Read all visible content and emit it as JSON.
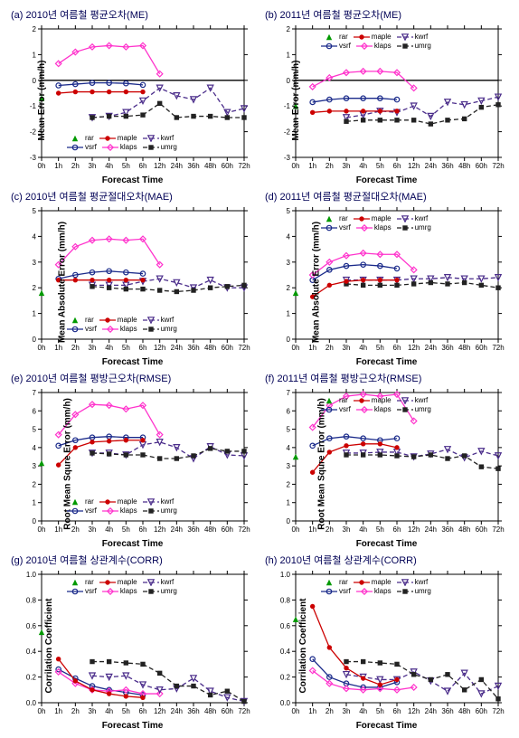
{
  "x_categories": [
    "0h",
    "1h",
    "2h",
    "3h",
    "4h",
    "5h",
    "6h",
    "12h",
    "24h",
    "36h",
    "48h",
    "60h",
    "72h"
  ],
  "xlabel": "Forecast Time",
  "series_meta": {
    "rar": {
      "label": "rar",
      "color": "#009900",
      "marker": "triangle",
      "line": "none"
    },
    "maple": {
      "label": "maple",
      "color": "#cc0000",
      "marker": "circle-fill",
      "line": "solid"
    },
    "kwrf": {
      "label": "kwrf",
      "color": "#4a2c8a",
      "marker": "tri-open",
      "line": "dash"
    },
    "vsrf": {
      "label": "vsrf",
      "color": "#1a2a8a",
      "marker": "circle-open",
      "line": "solid"
    },
    "klaps": {
      "label": "klaps",
      "color": "#ff33cc",
      "marker": "diamond-open",
      "line": "solid"
    },
    "umrg": {
      "label": "umrg",
      "color": "#222222",
      "marker": "square-fill",
      "line": "dash"
    }
  },
  "label_fontsize": 10,
  "tick_fontsize": 8,
  "title_fontsize": 11,
  "title_color": "#000055",
  "background_color": "#ffffff",
  "grid_color": "#000000",
  "panels": [
    {
      "id": "a",
      "title": "(a) 2010년  여름철 평균오차(ME)",
      "ylabel": "Mean Error (mm/h)",
      "ylim": [
        -3,
        2
      ],
      "ytick_step": 1,
      "zero_line": true,
      "legend_pos": "bottom-inside",
      "data": {
        "rar": [
          -0.7,
          null,
          null,
          null,
          null,
          null,
          null,
          null,
          null,
          null,
          null,
          null,
          null
        ],
        "maple": [
          null,
          -0.5,
          -0.45,
          -0.45,
          -0.45,
          -0.45,
          -0.45,
          null,
          null,
          null,
          null,
          null,
          null
        ],
        "vsrf": [
          null,
          -0.2,
          -0.15,
          -0.1,
          -0.1,
          -0.12,
          -0.18,
          null,
          null,
          null,
          null,
          null,
          null
        ],
        "klaps": [
          null,
          0.65,
          1.1,
          1.3,
          1.35,
          1.3,
          1.35,
          0.25,
          null,
          null,
          null,
          null,
          null
        ],
        "kwrf": [
          null,
          null,
          null,
          -1.45,
          -1.4,
          -1.25,
          -0.8,
          -0.3,
          -0.6,
          -0.75,
          -0.3,
          -1.25,
          -1.1
        ],
        "umrg": [
          null,
          null,
          null,
          -1.45,
          -1.4,
          -1.4,
          -1.35,
          -0.9,
          -1.45,
          -1.4,
          -1.4,
          -1.45,
          -1.45
        ]
      }
    },
    {
      "id": "b",
      "title": "(b) 2011년  여름철 평균오차(ME)",
      "ylabel": "Mean Error (mm/h)",
      "ylim": [
        -3,
        2
      ],
      "ytick_step": 1,
      "zero_line": true,
      "legend_pos": "top-inside",
      "data": {
        "rar": [
          -1.0,
          null,
          null,
          null,
          null,
          null,
          null,
          null,
          null,
          null,
          null,
          null,
          null
        ],
        "maple": [
          null,
          -1.25,
          -1.2,
          -1.2,
          -1.2,
          -1.2,
          -1.2,
          null,
          null,
          null,
          null,
          null,
          null
        ],
        "vsrf": [
          null,
          -0.85,
          -0.75,
          -0.7,
          -0.7,
          -0.7,
          -0.75,
          null,
          null,
          null,
          null,
          null,
          null
        ],
        "klaps": [
          null,
          -0.25,
          0.1,
          0.3,
          0.35,
          0.35,
          0.3,
          -0.3,
          null,
          null,
          null,
          null,
          null
        ],
        "kwrf": [
          null,
          null,
          null,
          -1.45,
          -1.35,
          -1.2,
          -1.25,
          -1.0,
          -1.4,
          -0.85,
          -0.95,
          -0.8,
          -0.65
        ],
        "umrg": [
          null,
          null,
          null,
          -1.6,
          -1.55,
          -1.55,
          -1.55,
          -1.55,
          -1.7,
          -1.55,
          -1.5,
          -1.05,
          -0.95
        ]
      }
    },
    {
      "id": "c",
      "title": "(c) 2010년  여름철  평균절대오차(MAE)",
      "ylabel": "Mean Absolute Error (mm/h)",
      "ylim": [
        0,
        5
      ],
      "ytick_step": 1,
      "legend_pos": "bottom-inside",
      "data": {
        "rar": [
          1.8,
          null,
          null,
          null,
          null,
          null,
          null,
          null,
          null,
          null,
          null,
          null,
          null
        ],
        "maple": [
          null,
          2.3,
          2.3,
          2.3,
          2.3,
          2.3,
          2.3,
          null,
          null,
          null,
          null,
          null,
          null
        ],
        "vsrf": [
          null,
          2.35,
          2.5,
          2.6,
          2.65,
          2.6,
          2.55,
          null,
          null,
          null,
          null,
          null,
          null
        ],
        "klaps": [
          null,
          2.9,
          3.6,
          3.85,
          3.9,
          3.85,
          3.9,
          2.9,
          null,
          null,
          null,
          null,
          null
        ],
        "kwrf": [
          null,
          null,
          null,
          2.1,
          2.1,
          2.1,
          2.25,
          2.35,
          2.2,
          2.0,
          2.3,
          2.0,
          2.0
        ],
        "umrg": [
          null,
          null,
          null,
          2.05,
          2.0,
          1.95,
          1.95,
          1.9,
          1.85,
          1.9,
          2.0,
          2.05,
          2.1
        ]
      }
    },
    {
      "id": "d",
      "title": "(d) 2011년  여름철  평균절대오차(MAE)",
      "ylabel": "Mean Absolute Error (mm/h)",
      "ylim": [
        0,
        5
      ],
      "ytick_step": 1,
      "legend_pos": "top-inside",
      "data": {
        "rar": [
          1.8,
          null,
          null,
          null,
          null,
          null,
          null,
          null,
          null,
          null,
          null,
          null,
          null
        ],
        "maple": [
          null,
          1.65,
          2.1,
          2.25,
          2.3,
          2.3,
          2.3,
          null,
          null,
          null,
          null,
          null,
          null
        ],
        "vsrf": [
          null,
          2.3,
          2.7,
          2.85,
          2.9,
          2.85,
          2.75,
          null,
          null,
          null,
          null,
          null,
          null
        ],
        "klaps": [
          null,
          2.5,
          3.0,
          3.25,
          3.35,
          3.3,
          3.3,
          2.7,
          null,
          null,
          null,
          null,
          null
        ],
        "kwrf": [
          null,
          null,
          null,
          2.3,
          2.3,
          2.3,
          2.3,
          2.35,
          2.35,
          2.4,
          2.35,
          2.35,
          2.4
        ],
        "umrg": [
          null,
          null,
          null,
          2.15,
          2.1,
          2.1,
          2.1,
          2.15,
          2.2,
          2.15,
          2.2,
          2.1,
          2.0
        ]
      }
    },
    {
      "id": "e",
      "title": "(e) 2010년  여름철 평방근오차(RMSE)",
      "ylabel": "Root Mean Squre Error (mm/h)",
      "ylim": [
        0,
        7
      ],
      "ytick_step": 1,
      "legend_pos": "bottom-inside",
      "data": {
        "rar": [
          3.15,
          null,
          null,
          null,
          null,
          null,
          null,
          null,
          null,
          null,
          null,
          null,
          null
        ],
        "maple": [
          null,
          3.05,
          4.0,
          4.3,
          4.35,
          4.4,
          4.4,
          null,
          null,
          null,
          null,
          null,
          null
        ],
        "vsrf": [
          null,
          4.1,
          4.4,
          4.55,
          4.6,
          4.55,
          4.55,
          null,
          null,
          null,
          null,
          null,
          null
        ],
        "klaps": [
          null,
          4.7,
          5.8,
          6.35,
          6.3,
          6.1,
          6.3,
          4.7,
          null,
          null,
          null,
          null,
          null
        ],
        "kwrf": [
          null,
          null,
          null,
          3.7,
          3.7,
          3.6,
          4.15,
          4.3,
          4.0,
          3.4,
          4.05,
          3.6,
          3.55
        ],
        "umrg": [
          null,
          null,
          null,
          3.7,
          3.65,
          3.6,
          3.6,
          3.4,
          3.4,
          3.55,
          3.95,
          3.8,
          3.8
        ]
      }
    },
    {
      "id": "f",
      "title": "(f) 2011년  여름철 평방근오차(RMSE)",
      "ylabel": "Root Mean Squre Error (mm/h)",
      "ylim": [
        0,
        7
      ],
      "ytick_step": 1,
      "legend_pos": "top-inside",
      "data": {
        "rar": [
          3.5,
          null,
          null,
          null,
          null,
          null,
          null,
          null,
          null,
          null,
          null,
          null,
          null
        ],
        "maple": [
          null,
          2.65,
          3.75,
          4.1,
          4.2,
          4.2,
          4.0,
          null,
          null,
          null,
          null,
          null,
          null
        ],
        "vsrf": [
          null,
          4.1,
          4.5,
          4.6,
          4.5,
          4.4,
          4.5,
          null,
          null,
          null,
          null,
          null,
          null
        ],
        "klaps": [
          null,
          5.1,
          6.3,
          6.8,
          6.9,
          6.8,
          6.9,
          5.45,
          null,
          null,
          null,
          null,
          null
        ],
        "kwrf": [
          null,
          null,
          null,
          3.7,
          3.7,
          3.75,
          3.75,
          3.5,
          3.65,
          3.9,
          3.45,
          3.8,
          3.55
        ],
        "umrg": [
          null,
          null,
          null,
          3.6,
          3.6,
          3.6,
          3.55,
          3.5,
          3.6,
          3.4,
          3.55,
          2.95,
          2.85
        ]
      }
    },
    {
      "id": "g",
      "title": "(g) 2010년  여름철  상관계수(CORR)",
      "ylabel": "Corrilation Coefficient",
      "ylim": [
        0,
        1
      ],
      "ytick_step": 0.2,
      "legend_pos": "top-inside",
      "data": {
        "rar": [
          0.55,
          null,
          null,
          null,
          null,
          null,
          null,
          null,
          null,
          null,
          null,
          null,
          null
        ],
        "maple": [
          null,
          0.34,
          0.17,
          0.1,
          0.07,
          0.05,
          0.04,
          null,
          null,
          null,
          null,
          null,
          null
        ],
        "vsrf": [
          null,
          0.26,
          0.19,
          0.13,
          0.1,
          0.08,
          0.06,
          null,
          null,
          null,
          null,
          null,
          null
        ],
        "klaps": [
          null,
          0.24,
          0.15,
          0.1,
          0.09,
          0.1,
          0.07,
          0.07,
          null,
          null,
          null,
          null,
          null
        ],
        "kwrf": [
          null,
          null,
          null,
          0.21,
          0.2,
          0.21,
          0.14,
          0.1,
          0.11,
          0.19,
          0.09,
          0.04,
          0.01
        ],
        "umrg": [
          null,
          null,
          null,
          0.32,
          0.32,
          0.31,
          0.3,
          0.23,
          0.13,
          0.13,
          0.06,
          0.09,
          0.01
        ]
      }
    },
    {
      "id": "h",
      "title": "(h) 2010년  여름철  상관계수(CORR)",
      "ylabel": "Corrilation Coefficient",
      "ylim": [
        0,
        1
      ],
      "ytick_step": 0.2,
      "legend_pos": "top-inside",
      "data": {
        "rar": [
          0.65,
          null,
          null,
          null,
          null,
          null,
          null,
          null,
          null,
          null,
          null,
          null,
          null
        ],
        "maple": [
          null,
          0.75,
          0.43,
          0.27,
          0.19,
          0.14,
          0.18,
          null,
          null,
          null,
          null,
          null,
          null
        ],
        "vsrf": [
          null,
          0.34,
          0.2,
          0.15,
          0.12,
          0.12,
          0.16,
          null,
          null,
          null,
          null,
          null,
          null
        ],
        "klaps": [
          null,
          0.25,
          0.15,
          0.11,
          0.1,
          0.11,
          0.1,
          0.12,
          null,
          null,
          null,
          null,
          null
        ],
        "kwrf": [
          null,
          null,
          null,
          0.22,
          0.2,
          0.18,
          0.18,
          0.24,
          0.17,
          0.09,
          0.23,
          0.07,
          0.13
        ],
        "umrg": [
          null,
          null,
          null,
          0.32,
          0.32,
          0.31,
          0.3,
          0.22,
          0.18,
          0.22,
          0.1,
          0.18,
          0.03
        ]
      }
    }
  ]
}
